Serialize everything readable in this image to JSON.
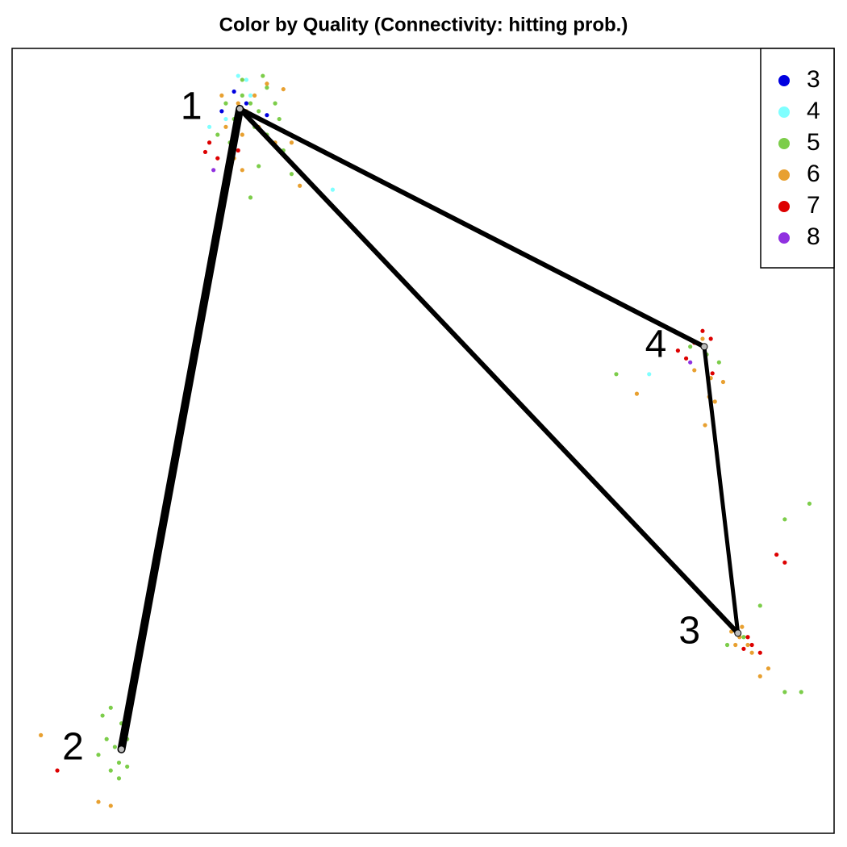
{
  "chart_data": {
    "type": "scatter",
    "title": "Color by Quality (Connectivity: hitting prob.)",
    "xlim": [
      0,
      100
    ],
    "ylim": [
      0,
      100
    ],
    "legend_position": "upper right",
    "series": [
      {
        "name": "3",
        "color": "#0000e0",
        "x": [
          27,
          31,
          28.5,
          25.5
        ],
        "y": [
          94.5,
          91.5,
          93,
          92
        ]
      },
      {
        "name": "4",
        "color": "#80ffff",
        "x": [
          27.5,
          28.5,
          26,
          39,
          77.5,
          29,
          24
        ],
        "y": [
          96.5,
          96,
          91,
          82,
          58.5,
          94,
          90
        ]
      },
      {
        "name": "5",
        "color": "#7ccd4a",
        "x": [
          28,
          29,
          30,
          26,
          27,
          31,
          32,
          29.5,
          25,
          33,
          30,
          34,
          29,
          26.5,
          32.5,
          31,
          28,
          30.5,
          12.5,
          13,
          14,
          12,
          13.5,
          11,
          12,
          13,
          10.5,
          14,
          11.5,
          13.3,
          89,
          88,
          94,
          97,
          94,
          96,
          91,
          87,
          73.5,
          82.5,
          84.5,
          86
        ],
        "y": [
          94,
          93,
          92,
          93,
          91,
          95,
          93,
          90,
          89,
          87,
          85,
          84,
          81,
          88,
          91,
          89,
          96,
          96.5,
          11,
          9,
          12,
          8,
          13,
          15,
          16,
          7,
          10,
          8.5,
          12,
          14,
          25,
          26,
          40,
          42,
          18,
          18,
          29,
          24,
          58.5,
          62,
          61,
          60
        ]
      },
      {
        "name": "6",
        "color": "#e8a030",
        "x": [
          27.5,
          28.5,
          29.5,
          30,
          26,
          32,
          34,
          27,
          28,
          35,
          31,
          33,
          25.5,
          28,
          3.5,
          10.5,
          12,
          88.5,
          89.5,
          90,
          88,
          92,
          91,
          88.8,
          87.5,
          84,
          85,
          85.5,
          84.3,
          84.8,
          76,
          83,
          86.5
        ],
        "y": [
          93,
          92,
          94,
          90,
          90,
          88,
          88,
          86,
          84.5,
          82.5,
          95.5,
          94.8,
          94,
          89,
          12.5,
          4,
          3.5,
          25,
          24,
          23,
          24,
          21,
          20,
          26.3,
          25.7,
          63,
          58,
          55,
          52,
          55.6,
          56,
          59,
          57.5
        ]
      },
      {
        "name": "7",
        "color": "#dd0000",
        "x": [
          24,
          25,
          26.5,
          27.5,
          23.5,
          5.5,
          90,
          89,
          91,
          93,
          94,
          89.5,
          83,
          84,
          81,
          85,
          85.2,
          82
        ],
        "y": [
          88,
          86,
          85.5,
          87,
          86.8,
          8,
          24,
          23.5,
          23,
          35.5,
          34.5,
          25,
          62.5,
          64,
          61.5,
          63,
          58.6,
          60.5
        ]
      },
      {
        "name": "8",
        "color": "#9030e0",
        "x": [
          24.5,
          82.5
        ],
        "y": [
          84.5,
          60
        ]
      }
    ],
    "nodes": [
      {
        "label": "1",
        "x": 27.7,
        "y": 92.3
      },
      {
        "label": "2",
        "x": 13.3,
        "y": 10.7
      },
      {
        "label": "3",
        "x": 88.3,
        "y": 25.5
      },
      {
        "label": "4",
        "x": 84.2,
        "y": 62.0
      }
    ],
    "edges": [
      {
        "source": 0,
        "target": 1,
        "weight": 10
      },
      {
        "source": 0,
        "target": 2,
        "weight": 6
      },
      {
        "source": 0,
        "target": 3,
        "weight": 6
      },
      {
        "source": 3,
        "target": 2,
        "weight": 5
      }
    ]
  }
}
